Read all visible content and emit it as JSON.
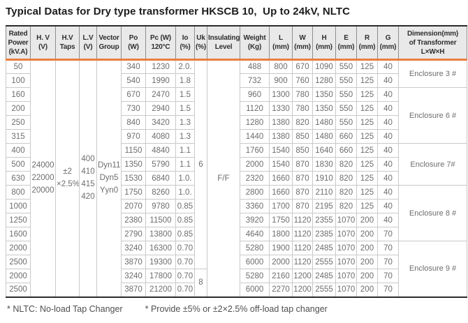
{
  "title": "Typical Datas for Dry type transformer HKSCB 10,  Up to 24kV, NLTC",
  "colors": {
    "accent_orange": "#E87E3F",
    "header_bg": "#E9E9E9",
    "border_gray": "#C9C9C9",
    "outer_border": "#2B2B2B",
    "body_text": "#6D6D6D",
    "header_text": "#2E2E2E"
  },
  "table": {
    "columns": [
      {
        "key": "power",
        "label": "Rated\nPower\n(kV.A)"
      },
      {
        "key": "hv",
        "label": "H. V\n(V)"
      },
      {
        "key": "taps",
        "label": "H.V\nTaps"
      },
      {
        "key": "lv",
        "label": "L.V\n(V)"
      },
      {
        "key": "vector",
        "label": "Vector\nGroup"
      },
      {
        "key": "po",
        "label": "Po\n(W)"
      },
      {
        "key": "pc",
        "label": "Pc (W)\n120°C"
      },
      {
        "key": "io",
        "label": "Io\n(%)"
      },
      {
        "key": "uk",
        "label": "Uk\n(%)"
      },
      {
        "key": "insul",
        "label": "Insulating\nLevel"
      },
      {
        "key": "weight",
        "label": "Weight\n(Kg)"
      },
      {
        "key": "l",
        "label": "L\n(mm)"
      },
      {
        "key": "w",
        "label": "W\n(mm)"
      },
      {
        "key": "h",
        "label": "H\n(mm)"
      },
      {
        "key": "e",
        "label": "E\n(mm)"
      },
      {
        "key": "r",
        "label": "R\n(mm)"
      },
      {
        "key": "g",
        "label": "G\n(mm)"
      },
      {
        "key": "dim",
        "label": "Dimension(mm)\nof Transformer\nL×W×H"
      }
    ],
    "merged": {
      "hv": "24000\n22000\n20000",
      "taps": "±2\n×2.5%",
      "lv": "400\n410\n415\n420",
      "vector": "Dyn11\nDyn5\nYyn0",
      "insul": "F/F"
    },
    "uk_groups": [
      {
        "value": "6",
        "span": 15
      },
      {
        "value": "8",
        "span": 2
      }
    ],
    "enclosures": [
      {
        "label": "Enclosure 3 #",
        "span": 2
      },
      {
        "label": "Enclosure 6 #",
        "span": 4
      },
      {
        "label": "Enclosure 7#",
        "span": 3
      },
      {
        "label": "Enclosure 8 #",
        "span": 4
      },
      {
        "label": "Enclosure 9 #",
        "span": 4
      }
    ],
    "rows": [
      {
        "power": "50",
        "po": "340",
        "pc": "1230",
        "io": "2.0.",
        "weight": "488",
        "l": "800",
        "w": "670",
        "h": "1090",
        "e": "550",
        "r": "125",
        "g": "40"
      },
      {
        "power": "100",
        "po": "540",
        "pc": "1990",
        "io": "1.8",
        "weight": "732",
        "l": "900",
        "w": "760",
        "h": "1280",
        "e": "550",
        "r": "125",
        "g": "40"
      },
      {
        "power": "160",
        "po": "670",
        "pc": "2470",
        "io": "1.5",
        "weight": "960",
        "l": "1300",
        "w": "780",
        "h": "1350",
        "e": "550",
        "r": "125",
        "g": "40"
      },
      {
        "power": "200",
        "po": "730",
        "pc": "2940",
        "io": "1.5",
        "weight": "1120",
        "l": "1330",
        "w": "780",
        "h": "1350",
        "e": "550",
        "r": "125",
        "g": "40"
      },
      {
        "power": "250",
        "po": "840",
        "pc": "3420",
        "io": "1.3",
        "weight": "1280",
        "l": "1380",
        "w": "820",
        "h": "1480",
        "e": "550",
        "r": "125",
        "g": "40"
      },
      {
        "power": "315",
        "po": "970",
        "pc": "4080",
        "io": "1.3",
        "weight": "1440",
        "l": "1380",
        "w": "850",
        "h": "1480",
        "e": "660",
        "r": "125",
        "g": "40"
      },
      {
        "power": "400",
        "po": "1150",
        "pc": "4840",
        "io": "1.1",
        "weight": "1760",
        "l": "1540",
        "w": "850",
        "h": "1640",
        "e": "660",
        "r": "125",
        "g": "40"
      },
      {
        "power": "500",
        "po": "1350",
        "pc": "5790",
        "io": "1.1",
        "weight": "2000",
        "l": "1540",
        "w": "870",
        "h": "1830",
        "e": "820",
        "r": "125",
        "g": "40"
      },
      {
        "power": "630",
        "po": "1530",
        "pc": "6840",
        "io": "1.0.",
        "weight": "2320",
        "l": "1660",
        "w": "870",
        "h": "1910",
        "e": "820",
        "r": "125",
        "g": "40"
      },
      {
        "power": "800",
        "po": "1750",
        "pc": "8260",
        "io": "1.0.",
        "weight": "2800",
        "l": "1660",
        "w": "870",
        "h": "2110",
        "e": "820",
        "r": "125",
        "g": "40"
      },
      {
        "power": "1000",
        "po": "2070",
        "pc": "9780",
        "io": "0.85",
        "weight": "3360",
        "l": "1700",
        "w": "870",
        "h": "2195",
        "e": "820",
        "r": "125",
        "g": "40"
      },
      {
        "power": "1250",
        "po": "2380",
        "pc": "11500",
        "io": "0.85",
        "weight": "3920",
        "l": "1750",
        "w": "1120",
        "h": "2355",
        "e": "1070",
        "r": "200",
        "g": "40"
      },
      {
        "power": "1600",
        "po": "2790",
        "pc": "13800",
        "io": "0.85",
        "weight": "4640",
        "l": "1800",
        "w": "1120",
        "h": "2385",
        "e": "1070",
        "r": "200",
        "g": "70"
      },
      {
        "power": "2000",
        "po": "3240",
        "pc": "16300",
        "io": "0.70",
        "weight": "5280",
        "l": "1900",
        "w": "1120",
        "h": "2485",
        "e": "1070",
        "r": "200",
        "g": "70"
      },
      {
        "power": "2500",
        "po": "3870",
        "pc": "19300",
        "io": "0.70",
        "weight": "6000",
        "l": "2000",
        "w": "1120",
        "h": "2555",
        "e": "1070",
        "r": "200",
        "g": "70"
      },
      {
        "power": "2000",
        "po": "3240",
        "pc": "17800",
        "io": "0.70",
        "weight": "5280",
        "l": "2160",
        "w": "1200",
        "h": "2485",
        "e": "1070",
        "r": "200",
        "g": "70"
      },
      {
        "power": "2500",
        "po": "3870",
        "pc": "21200",
        "io": "0.70",
        "weight": "6000",
        "l": "2270",
        "w": "1200",
        "h": "2555",
        "e": "1070",
        "r": "200",
        "g": "70"
      }
    ],
    "footnotes": [
      "* NLTC: No-load Tap Changer",
      "* Provide ±5% or ±2×2.5% off-load tap changer"
    ]
  }
}
